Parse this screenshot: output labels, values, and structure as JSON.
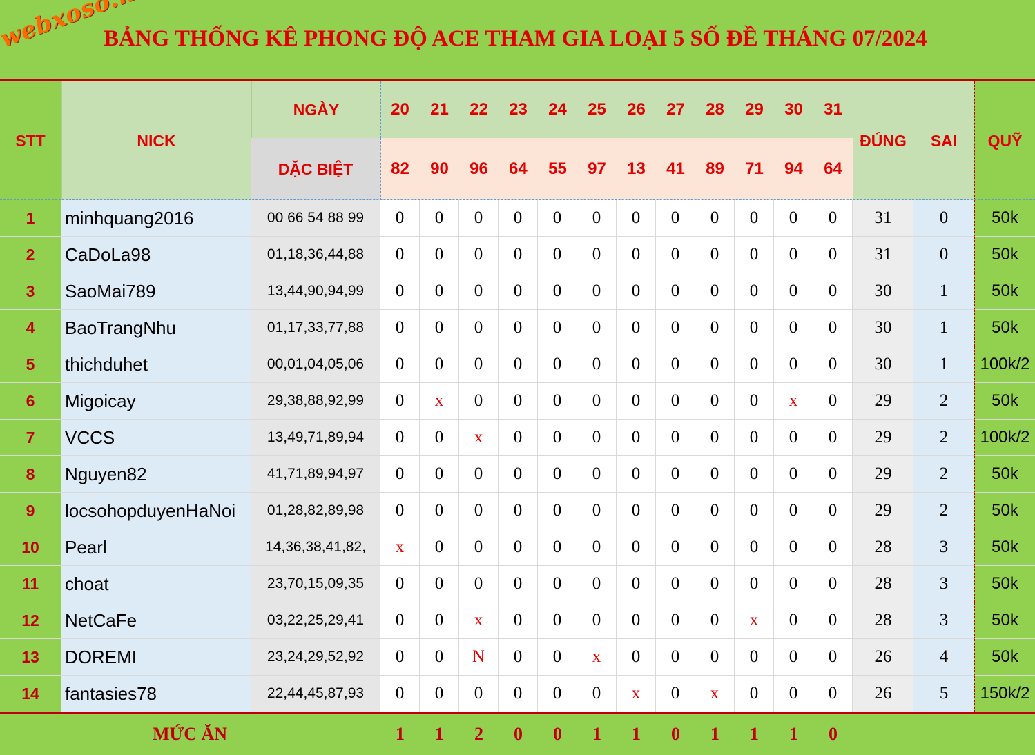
{
  "title_bar": {
    "logo": "webxoso.net",
    "title": "BẢNG THỐNG KÊ PHONG ĐỘ ACE THAM GIA LOẠI 5 SỐ ĐỀ THÁNG 07/2024"
  },
  "header": {
    "stt": "STT",
    "nick": "NICK",
    "ngay": "NGÀY",
    "dac_biet": "DẶC BIỆT",
    "dung": "ĐÚNG",
    "sai": "SAI",
    "quy": "QUỸ",
    "days": [
      "20",
      "21",
      "22",
      "23",
      "24",
      "25",
      "26",
      "27",
      "28",
      "29",
      "30",
      "31"
    ],
    "results": [
      "82",
      "90",
      "96",
      "64",
      "55",
      "97",
      "13",
      "41",
      "89",
      "71",
      "94",
      "64"
    ]
  },
  "rows": [
    {
      "stt": "1",
      "nick": "minhquang2016",
      "numbers": "00 66 54 88 99",
      "marks": [
        "0",
        "0",
        "0",
        "0",
        "0",
        "0",
        "0",
        "0",
        "0",
        "0",
        "0",
        "0"
      ],
      "dung": "31",
      "sai": "0",
      "quy": "50k"
    },
    {
      "stt": "2",
      "nick": "CaDoLa98",
      "numbers": "01,18,36,44,88",
      "marks": [
        "0",
        "0",
        "0",
        "0",
        "0",
        "0",
        "0",
        "0",
        "0",
        "0",
        "0",
        "0"
      ],
      "dung": "31",
      "sai": "0",
      "quy": "50k"
    },
    {
      "stt": "3",
      "nick": "SaoMai789",
      "numbers": "13,44,90,94,99",
      "marks": [
        "0",
        "0",
        "0",
        "0",
        "0",
        "0",
        "0",
        "0",
        "0",
        "0",
        "0",
        "0"
      ],
      "dung": "30",
      "sai": "1",
      "quy": "50k"
    },
    {
      "stt": "4",
      "nick": "BaoTrangNhu",
      "numbers": "01,17,33,77,88",
      "marks": [
        "0",
        "0",
        "0",
        "0",
        "0",
        "0",
        "0",
        "0",
        "0",
        "0",
        "0",
        "0"
      ],
      "dung": "30",
      "sai": "1",
      "quy": "50k"
    },
    {
      "stt": "5",
      "nick": "thichduhet",
      "numbers": "00,01,04,05,06",
      "marks": [
        "0",
        "0",
        "0",
        "0",
        "0",
        "0",
        "0",
        "0",
        "0",
        "0",
        "0",
        "0"
      ],
      "dung": "30",
      "sai": "1",
      "quy": "100k/2"
    },
    {
      "stt": "6",
      "nick": "Migoicay",
      "numbers": "29,38,88,92,99",
      "marks": [
        "0",
        "x",
        "0",
        "0",
        "0",
        "0",
        "0",
        "0",
        "0",
        "0",
        "x",
        "0"
      ],
      "dung": "29",
      "sai": "2",
      "quy": "50k"
    },
    {
      "stt": "7",
      "nick": "VCCS",
      "numbers": "13,49,71,89,94",
      "marks": [
        "0",
        "0",
        "x",
        "0",
        "0",
        "0",
        "0",
        "0",
        "0",
        "0",
        "0",
        "0"
      ],
      "dung": "29",
      "sai": "2",
      "quy": "100k/2"
    },
    {
      "stt": "8",
      "nick": "Nguyen82",
      "numbers": "41,71,89,94,97",
      "marks": [
        "0",
        "0",
        "0",
        "0",
        "0",
        "0",
        "0",
        "0",
        "0",
        "0",
        "0",
        "0"
      ],
      "dung": "29",
      "sai": "2",
      "quy": "50k"
    },
    {
      "stt": "9",
      "nick": "locsohopduyenHaNoi",
      "numbers": "01,28,82,89,98",
      "marks": [
        "0",
        "0",
        "0",
        "0",
        "0",
        "0",
        "0",
        "0",
        "0",
        "0",
        "0",
        "0"
      ],
      "dung": "29",
      "sai": "2",
      "quy": "50k"
    },
    {
      "stt": "10",
      "nick": "Pearl",
      "numbers": "14,36,38,41,82,",
      "marks": [
        "x",
        "0",
        "0",
        "0",
        "0",
        "0",
        "0",
        "0",
        "0",
        "0",
        "0",
        "0"
      ],
      "dung": "28",
      "sai": "3",
      "quy": "50k"
    },
    {
      "stt": "11",
      "nick": "choat",
      "numbers": "23,70,15,09,35",
      "marks": [
        "0",
        "0",
        "0",
        "0",
        "0",
        "0",
        "0",
        "0",
        "0",
        "0",
        "0",
        "0"
      ],
      "dung": "28",
      "sai": "3",
      "quy": "50k"
    },
    {
      "stt": "12",
      "nick": "NetCaFe",
      "numbers": "03,22,25,29,41",
      "marks": [
        "0",
        "0",
        "x",
        "0",
        "0",
        "0",
        "0",
        "0",
        "0",
        "x",
        "0",
        "0"
      ],
      "dung": "28",
      "sai": "3",
      "quy": "50k"
    },
    {
      "stt": "13",
      "nick": "DOREMI",
      "numbers": "23,24,29,52,92",
      "marks": [
        "0",
        "0",
        "N",
        "0",
        "0",
        "x",
        "0",
        "0",
        "0",
        "0",
        "0",
        "0"
      ],
      "dung": "26",
      "sai": "4",
      "quy": "50k"
    },
    {
      "stt": "14",
      "nick": "fantasies78",
      "numbers": "22,44,45,87,93",
      "marks": [
        "0",
        "0",
        "0",
        "0",
        "0",
        "0",
        "x",
        "0",
        "x",
        "0",
        "0",
        "0"
      ],
      "dung": "26",
      "sai": "5",
      "quy": "150k/2"
    }
  ],
  "footer": {
    "label": "MỨC ĂN",
    "values": [
      "1",
      "1",
      "2",
      "0",
      "0",
      "1",
      "1",
      "0",
      "1",
      "1",
      "1",
      "0"
    ]
  },
  "colors": {
    "green": "#92d050",
    "light_green": "#c6e0b4",
    "pink": "#fce4d6",
    "red_text": "#e00000",
    "blue_light": "#ddebf7",
    "grey": "#e7e6e6"
  }
}
